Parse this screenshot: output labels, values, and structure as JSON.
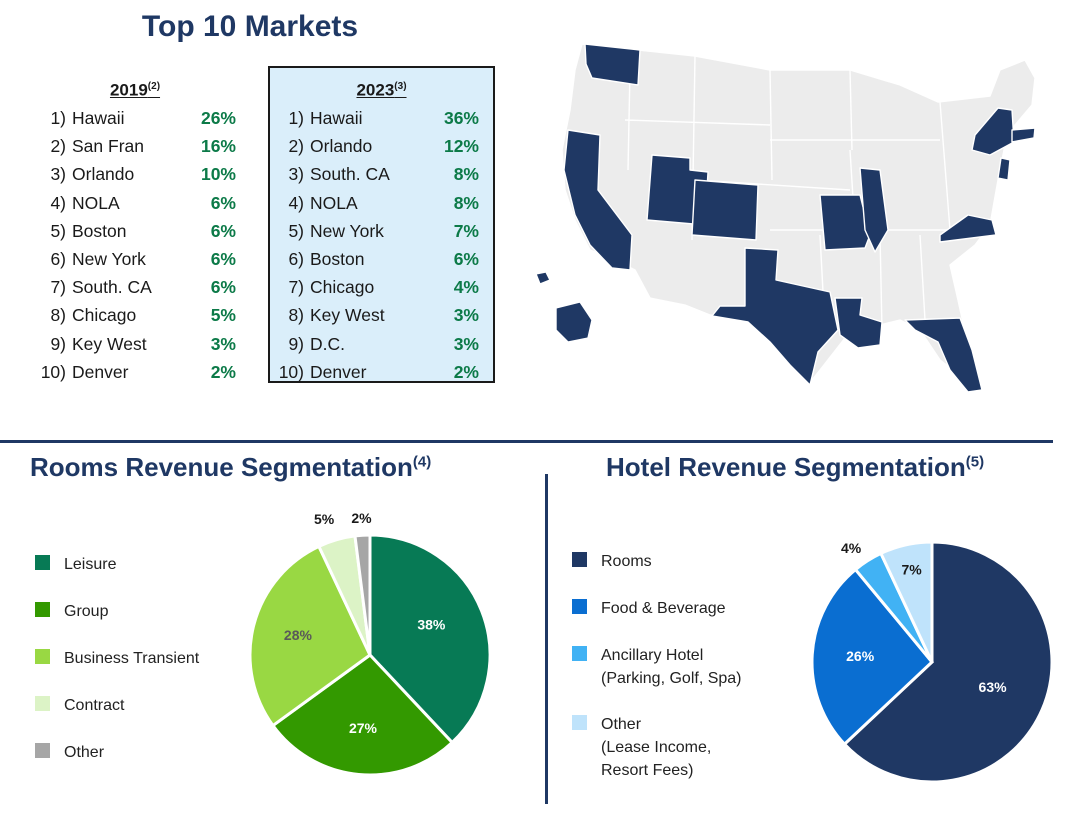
{
  "top_markets": {
    "title": "Top 10 Markets",
    "col2019": {
      "year": "2019",
      "note": "(2)",
      "items": [
        {
          "rank": "1)",
          "name": "Hawaii",
          "pct": "26%"
        },
        {
          "rank": "2)",
          "name": "San Fran",
          "pct": "16%"
        },
        {
          "rank": "3)",
          "name": "Orlando",
          "pct": "10%"
        },
        {
          "rank": "4)",
          "name": "NOLA",
          "pct": "6%"
        },
        {
          "rank": "5)",
          "name": "Boston",
          "pct": "6%"
        },
        {
          "rank": "6)",
          "name": "New York",
          "pct": "6%"
        },
        {
          "rank": "7)",
          "name": "South. CA",
          "pct": "6%"
        },
        {
          "rank": "8)",
          "name": "Chicago",
          "pct": "5%"
        },
        {
          "rank": "9)",
          "name": "Key West",
          "pct": "3%"
        },
        {
          "rank": "10)",
          "name": "Denver",
          "pct": "2%"
        }
      ]
    },
    "col2023": {
      "year": "2023",
      "note": "(3)",
      "items": [
        {
          "rank": "1)",
          "name": "Hawaii",
          "pct": "36%"
        },
        {
          "rank": "2)",
          "name": "Orlando",
          "pct": "12%"
        },
        {
          "rank": "3)",
          "name": "South. CA",
          "pct": "8%"
        },
        {
          "rank": "4)",
          "name": "NOLA",
          "pct": "8%"
        },
        {
          "rank": "5)",
          "name": "New York",
          "pct": "7%"
        },
        {
          "rank": "6)",
          "name": "Boston",
          "pct": "6%"
        },
        {
          "rank": "7)",
          "name": "Chicago",
          "pct": "4%"
        },
        {
          "rank": "8)",
          "name": "Key West",
          "pct": "3%"
        },
        {
          "rank": "9)",
          "name": "D.C.",
          "pct": "3%"
        },
        {
          "rank": "10)",
          "name": "Denver",
          "pct": "2%"
        }
      ]
    }
  },
  "map": {
    "highlight_color": "#1f3864",
    "base_color": "#ececec",
    "highlighted_states": [
      "WA",
      "CA",
      "UT",
      "CO",
      "TX",
      "LA",
      "MO",
      "IL",
      "FL",
      "VA",
      "NJ",
      "NY",
      "MA",
      "HI"
    ]
  },
  "rooms_section": {
    "title": "Rooms Revenue Segmentation",
    "note": "(4)"
  },
  "hotel_section": {
    "title": "Hotel Revenue Segmentation",
    "note": "(5)"
  },
  "chart_data": [
    {
      "type": "pie",
      "title": "Rooms Revenue Segmentation",
      "categories": [
        "Leisure",
        "Group",
        "Business Transient",
        "Contract",
        "Other"
      ],
      "values": [
        38,
        27,
        28,
        5,
        2
      ],
      "labels": [
        "38%",
        "27%",
        "28%",
        "5%",
        "2%"
      ],
      "colors": [
        "#077a55",
        "#339900",
        "#99d843",
        "#dcf3c6",
        "#a6a6a6"
      ],
      "label_colors": [
        "#ffffff",
        "#ffffff",
        "#595959",
        "#1a1a1a",
        "#1a1a1a"
      ],
      "legend": [
        {
          "label": [
            "Leisure"
          ]
        },
        {
          "label": [
            "Group"
          ]
        },
        {
          "label": [
            "Business Transient"
          ]
        },
        {
          "label": [
            "Contract"
          ]
        },
        {
          "label": [
            "Other"
          ]
        }
      ],
      "legend_placement": "left"
    },
    {
      "type": "pie",
      "title": "Hotel Revenue Segmentation",
      "categories": [
        "Rooms",
        "Food & Beverage",
        "Ancillary Hotel (Parking, Golf, Spa)",
        "Other (Lease Income, Resort Fees)"
      ],
      "values": [
        63,
        26,
        4,
        7
      ],
      "labels": [
        "63%",
        "26%",
        "4%",
        "7%"
      ],
      "colors": [
        "#1f3864",
        "#0a6ed1",
        "#41b2f4",
        "#bfe3fb"
      ],
      "label_colors": [
        "#ffffff",
        "#ffffff",
        "#1a1a1a",
        "#1a1a1a"
      ],
      "legend": [
        {
          "label": [
            "Rooms"
          ]
        },
        {
          "label": [
            "Food & Beverage"
          ]
        },
        {
          "label": [
            "Ancillary Hotel",
            "(Parking, Golf, Spa)"
          ]
        },
        {
          "label": [
            "Other",
            "(Lease Income,",
            "Resort Fees)"
          ]
        }
      ],
      "legend_placement": "left"
    }
  ]
}
